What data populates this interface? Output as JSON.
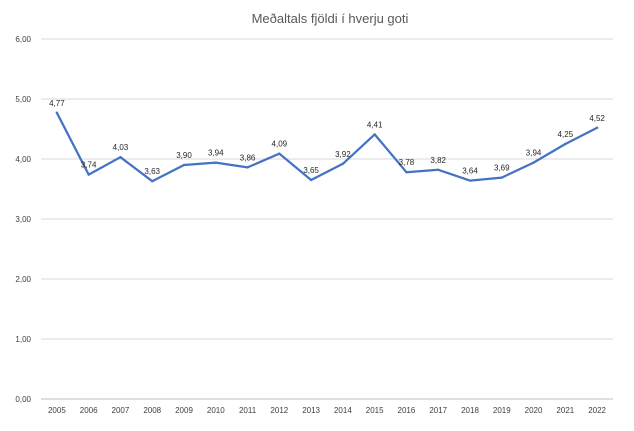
{
  "chart_data": {
    "type": "line",
    "title": "Meðaltals fjöldi í hverju goti",
    "categories": [
      "2005",
      "2006",
      "2007",
      "2008",
      "2009",
      "2010",
      "2011",
      "2012",
      "2013",
      "2014",
      "2015",
      "2016",
      "2017",
      "2018",
      "2019",
      "2020",
      "2021",
      "2022"
    ],
    "series": [
      {
        "values": [
          4.77,
          3.74,
          4.03,
          3.63,
          3.9,
          3.94,
          3.86,
          4.09,
          3.65,
          3.92,
          4.41,
          3.78,
          3.82,
          3.64,
          3.69,
          3.94,
          4.25,
          4.52
        ],
        "labels": [
          "4,77",
          "3,74",
          "4,03",
          "3,63",
          "3,90",
          "3,94",
          "3,86",
          "4,09",
          "3,65",
          "3,92",
          "4,41",
          "3,78",
          "3,82",
          "3,64",
          "3,69",
          "3,94",
          "4,25",
          "4,52"
        ]
      }
    ],
    "ylim": [
      0,
      6
    ],
    "yticks": [
      "0,00",
      "1,00",
      "2,00",
      "3,00",
      "4,00",
      "5,00",
      "6,00"
    ],
    "grid": true,
    "line_color": "#4472c4"
  }
}
